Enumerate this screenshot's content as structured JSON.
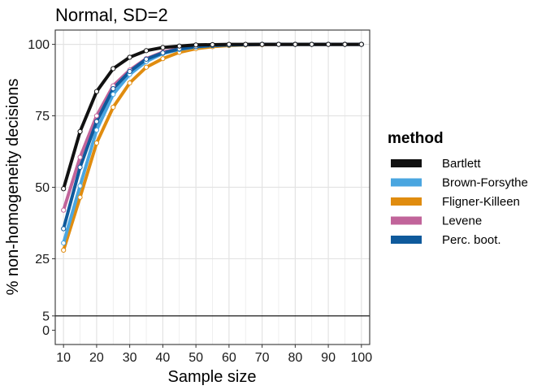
{
  "chart_data": {
    "type": "line",
    "title": "Normal, SD=2",
    "xlabel": "Sample size",
    "ylabel": "% non-homogeneity decisions",
    "xlim": [
      7.5,
      102.5
    ],
    "ylim": [
      -5,
      105
    ],
    "x_major_ticks": [
      10,
      20,
      30,
      40,
      50,
      60,
      70,
      80,
      90,
      100
    ],
    "x_minor_ticks": [
      15,
      25,
      35,
      45,
      55,
      65,
      75,
      85,
      95
    ],
    "y_ticks": [
      0,
      5,
      25,
      50,
      75,
      100
    ],
    "y_grid": [
      25,
      50,
      75,
      100
    ],
    "reference_line": 5,
    "grid": true,
    "legend": {
      "title": "method",
      "position": "right"
    },
    "x": [
      10,
      15,
      20,
      25,
      30,
      35,
      40,
      45,
      50,
      55,
      60,
      65,
      70,
      75,
      80,
      85,
      90,
      95,
      100
    ],
    "series": [
      {
        "name": "Bartlett",
        "color": "#111111",
        "values": [
          49.5,
          69.5,
          83.5,
          91.5,
          95.5,
          97.8,
          98.9,
          99.4,
          99.8,
          99.9,
          100,
          100,
          100,
          100,
          100,
          100,
          100,
          100,
          100
        ]
      },
      {
        "name": "Brown-Forsythe",
        "color": "#4aa6e0",
        "values": [
          30.5,
          50.5,
          70.0,
          82.5,
          89.5,
          94.0,
          96.8,
          98.2,
          99.1,
          99.6,
          99.8,
          99.9,
          100,
          100,
          100,
          100,
          100,
          100,
          100
        ]
      },
      {
        "name": "Fligner-Killeen",
        "color": "#e08c0f",
        "values": [
          28.0,
          46.5,
          65.5,
          78.0,
          86.5,
          92.0,
          95.0,
          97.2,
          98.5,
          99.2,
          99.6,
          99.8,
          99.9,
          100,
          100,
          100,
          100,
          100,
          100
        ]
      },
      {
        "name": "Levene",
        "color": "#c1649a",
        "values": [
          42.0,
          60.5,
          75.0,
          85.5,
          91.0,
          95.0,
          97.3,
          98.6,
          99.3,
          99.7,
          99.9,
          99.9,
          100,
          100,
          100,
          100,
          100,
          100,
          100
        ]
      },
      {
        "name": "Perc. boot.",
        "color": "#0f5a9c",
        "values": [
          35.5,
          57.0,
          73.0,
          84.5,
          90.5,
          94.8,
          97.0,
          98.4,
          99.2,
          99.6,
          99.8,
          99.9,
          100,
          100,
          100,
          100,
          100,
          100,
          100
        ]
      }
    ]
  }
}
